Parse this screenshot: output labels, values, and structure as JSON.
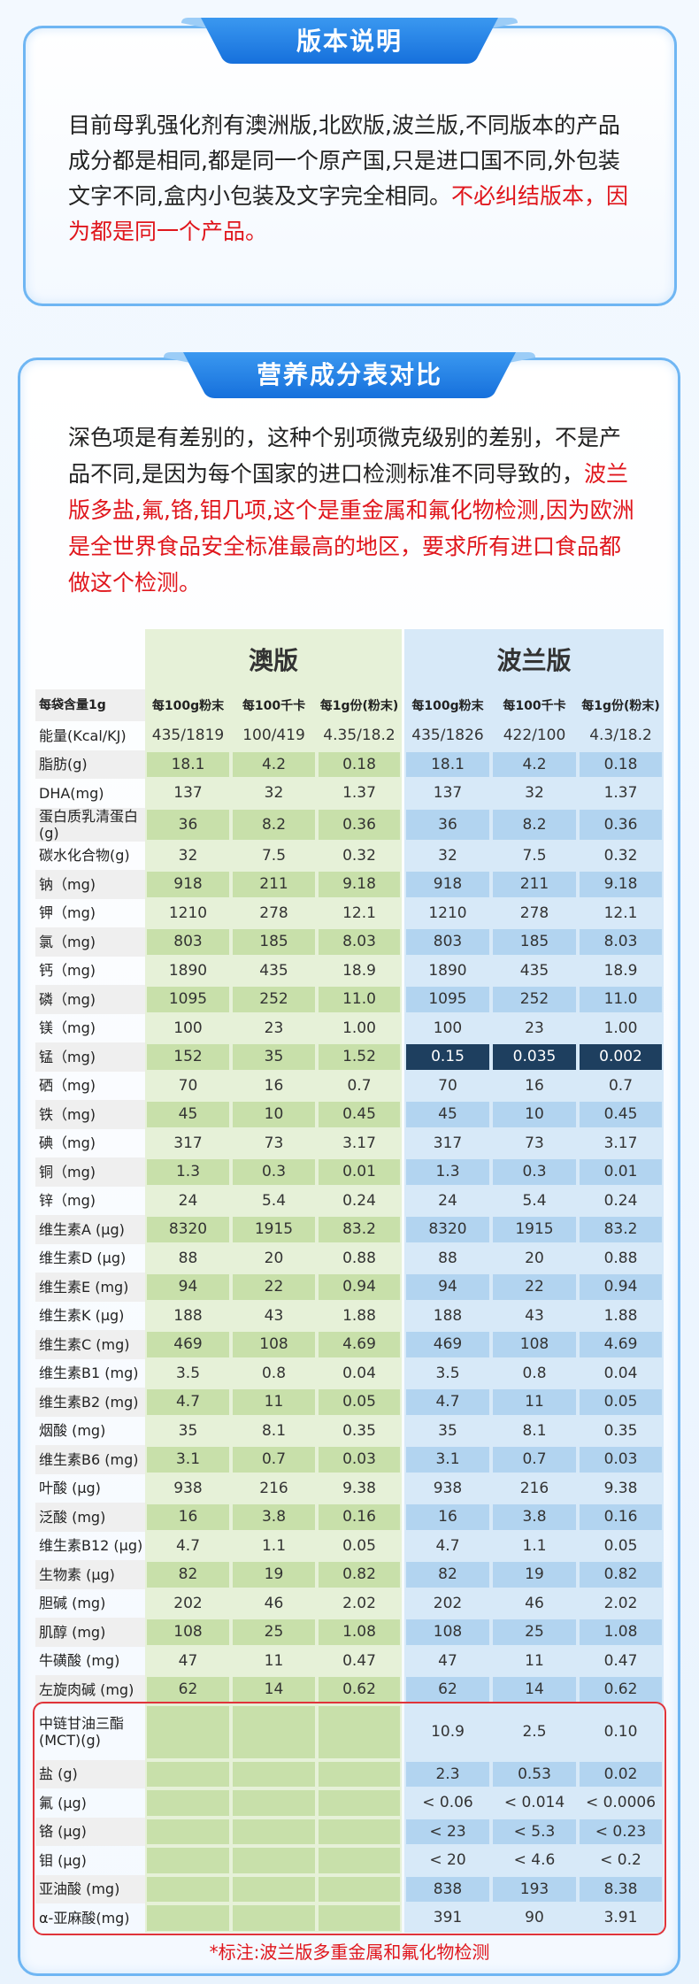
{
  "card1": {
    "title": "版本说明",
    "text": "目前母乳强化剂有澳洲版,北欧版,波兰版,不同版本的产品成分都是相同,都是同一个原产国,只是进口国不同,外包装文字不同,盒内小包装及文字完全相同。",
    "text_red": "不必纠结版本，因为都是同一个产品。"
  },
  "card2": {
    "title": "营养成分表对比",
    "text": "深色项是有差别的，这种个别项微克级别的差别，不是产品不同,是因为每个国家的进口检测标准不同导致的，",
    "text_red": "波兰版多盐,氟,铬,钼几项,这个是重金属和氟化物检测,因为欧洲是全世界食品安全标准最高的地区，要求所有进口食品都做这个检测。"
  },
  "table": {
    "groups": [
      "澳版",
      "波兰版"
    ],
    "corner": "每袋含量1g",
    "columns": [
      "每100g粉末",
      "每100千卡",
      "每1g份(粉末)"
    ],
    "rows": [
      {
        "label": "能量(Kcal/KJ)",
        "aus": [
          "435/1819",
          "100/419",
          "4.35/18.2"
        ],
        "pl": [
          "435/1826",
          "422/100",
          "4.3/18.2"
        ]
      },
      {
        "label": "脂肪(g)",
        "aus": [
          "18.1",
          "4.2",
          "0.18"
        ],
        "pl": [
          "18.1",
          "4.2",
          "0.18"
        ]
      },
      {
        "label": "DHA(mg)",
        "aus": [
          "137",
          "32",
          "1.37"
        ],
        "pl": [
          "137",
          "32",
          "1.37"
        ]
      },
      {
        "label": "蛋白质乳清蛋白(g)",
        "aus": [
          "36",
          "8.2",
          "0.36"
        ],
        "pl": [
          "36",
          "8.2",
          "0.36"
        ]
      },
      {
        "label": "碳水化合物(g)",
        "aus": [
          "32",
          "7.5",
          "0.32"
        ],
        "pl": [
          "32",
          "7.5",
          "0.32"
        ]
      },
      {
        "label": "钠（mg)",
        "aus": [
          "918",
          "211",
          "9.18"
        ],
        "pl": [
          "918",
          "211",
          "9.18"
        ]
      },
      {
        "label": "钾（mg)",
        "aus": [
          "1210",
          "278",
          "12.1"
        ],
        "pl": [
          "1210",
          "278",
          "12.1"
        ]
      },
      {
        "label": "氯（mg)",
        "aus": [
          "803",
          "185",
          "8.03"
        ],
        "pl": [
          "803",
          "185",
          "8.03"
        ]
      },
      {
        "label": "钙（mg)",
        "aus": [
          "1890",
          "435",
          "18.9"
        ],
        "pl": [
          "1890",
          "435",
          "18.9"
        ]
      },
      {
        "label": "磷（mg)",
        "aus": [
          "1095",
          "252",
          "11.0"
        ],
        "pl": [
          "1095",
          "252",
          "11.0"
        ]
      },
      {
        "label": "镁（mg)",
        "aus": [
          "100",
          "23",
          "1.00"
        ],
        "pl": [
          "100",
          "23",
          "1.00"
        ]
      },
      {
        "label": "锰（mg)",
        "aus": [
          "152",
          "35",
          "1.52"
        ],
        "pl": [
          "0.15",
          "0.035",
          "0.002"
        ],
        "highlight": "pl"
      },
      {
        "label": "硒（mg)",
        "aus": [
          "70",
          "16",
          "0.7"
        ],
        "pl": [
          "70",
          "16",
          "0.7"
        ]
      },
      {
        "label": "铁（mg)",
        "aus": [
          "45",
          "10",
          "0.45"
        ],
        "pl": [
          "45",
          "10",
          "0.45"
        ]
      },
      {
        "label": "碘（mg)",
        "aus": [
          "317",
          "73",
          "3.17"
        ],
        "pl": [
          "317",
          "73",
          "3.17"
        ]
      },
      {
        "label": "铜（mg)",
        "aus": [
          "1.3",
          "0.3",
          "0.01"
        ],
        "pl": [
          "1.3",
          "0.3",
          "0.01"
        ]
      },
      {
        "label": "锌（mg)",
        "aus": [
          "24",
          "5.4",
          "0.24"
        ],
        "pl": [
          "24",
          "5.4",
          "0.24"
        ]
      },
      {
        "label": "维生素A (μg)",
        "aus": [
          "8320",
          "1915",
          "83.2"
        ],
        "pl": [
          "8320",
          "1915",
          "83.2"
        ]
      },
      {
        "label": "维生素D (μg)",
        "aus": [
          "88",
          "20",
          "0.88"
        ],
        "pl": [
          "88",
          "20",
          "0.88"
        ]
      },
      {
        "label": "维生素E (mg)",
        "aus": [
          "94",
          "22",
          "0.94"
        ],
        "pl": [
          "94",
          "22",
          "0.94"
        ]
      },
      {
        "label": "维生素K (μg)",
        "aus": [
          "188",
          "43",
          "1.88"
        ],
        "pl": [
          "188",
          "43",
          "1.88"
        ]
      },
      {
        "label": "维生素C (mg)",
        "aus": [
          "469",
          "108",
          "4.69"
        ],
        "pl": [
          "469",
          "108",
          "4.69"
        ]
      },
      {
        "label": "维生素B1 (mg)",
        "aus": [
          "3.5",
          "0.8",
          "0.04"
        ],
        "pl": [
          "3.5",
          "0.8",
          "0.04"
        ]
      },
      {
        "label": "维生素B2 (mg)",
        "aus": [
          "4.7",
          "11",
          "0.05"
        ],
        "pl": [
          "4.7",
          "11",
          "0.05"
        ]
      },
      {
        "label": "烟酸 (mg)",
        "aus": [
          "35",
          "8.1",
          "0.35"
        ],
        "pl": [
          "35",
          "8.1",
          "0.35"
        ]
      },
      {
        "label": "维生素B6 (mg)",
        "aus": [
          "3.1",
          "0.7",
          "0.03"
        ],
        "pl": [
          "3.1",
          "0.7",
          "0.03"
        ]
      },
      {
        "label": "叶酸 (μg)",
        "aus": [
          "938",
          "216",
          "9.38"
        ],
        "pl": [
          "938",
          "216",
          "9.38"
        ]
      },
      {
        "label": "泛酸 (mg)",
        "aus": [
          "16",
          "3.8",
          "0.16"
        ],
        "pl": [
          "16",
          "3.8",
          "0.16"
        ]
      },
      {
        "label": "维生素B12 (μg)",
        "aus": [
          "4.7",
          "1.1",
          "0.05"
        ],
        "pl": [
          "4.7",
          "1.1",
          "0.05"
        ]
      },
      {
        "label": "生物素 (μg)",
        "aus": [
          "82",
          "19",
          "0.82"
        ],
        "pl": [
          "82",
          "19",
          "0.82"
        ]
      },
      {
        "label": "胆碱 (mg)",
        "aus": [
          "202",
          "46",
          "2.02"
        ],
        "pl": [
          "202",
          "46",
          "2.02"
        ]
      },
      {
        "label": "肌醇 (mg)",
        "aus": [
          "108",
          "25",
          "1.08"
        ],
        "pl": [
          "108",
          "25",
          "1.08"
        ]
      },
      {
        "label": "牛磺酸 (mg)",
        "aus": [
          "47",
          "11",
          "0.47"
        ],
        "pl": [
          "47",
          "11",
          "0.47"
        ]
      },
      {
        "label": "左旋肉碱 (mg)",
        "aus": [
          "62",
          "14",
          "0.62"
        ],
        "pl": [
          "62",
          "14",
          "0.62"
        ]
      },
      {
        "label": "中链甘油三酯(MCT)(g)",
        "pl": [
          "10.9",
          "2.5",
          "0.10"
        ]
      },
      {
        "label": "盐 (g)",
        "pl": [
          "2.3",
          "0.53",
          "0.02"
        ]
      },
      {
        "label": "氟 (μg)",
        "pl": [
          "< 0.06",
          "< 0.014",
          "< 0.0006"
        ]
      },
      {
        "label": "铬 (μg)",
        "pl": [
          "< 23",
          "< 5.3",
          "< 0.23"
        ]
      },
      {
        "label": "钼 (μg)",
        "pl": [
          "< 20",
          "< 4.6",
          "< 0.2"
        ]
      },
      {
        "label": "亚油酸 (mg)",
        "pl": [
          "838",
          "193",
          "8.38"
        ]
      },
      {
        "label": "α-亚麻酸(mg)",
        "pl": [
          "391",
          "90",
          "3.91"
        ]
      }
    ],
    "footnote": "*标注:波兰版多重金属和氟化物检测"
  }
}
